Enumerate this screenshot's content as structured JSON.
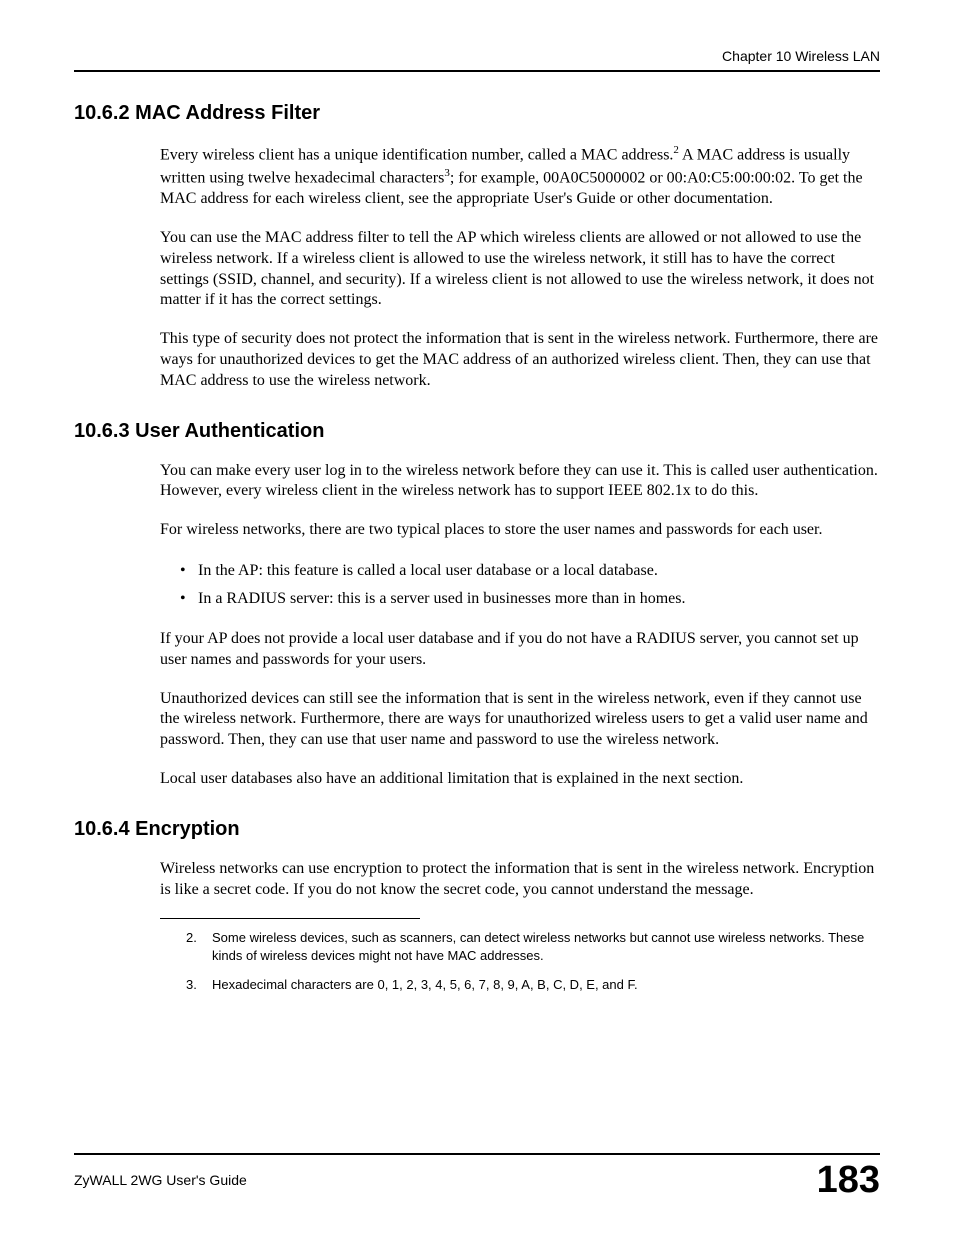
{
  "header": {
    "chapter": "Chapter 10 Wireless LAN"
  },
  "sections": {
    "s1": {
      "heading": "10.6.2  MAC Address Filter",
      "p1a": "Every wireless client has a unique identification number, called a MAC address.",
      "p1_sup1": "2",
      "p1b": " A MAC address is usually written using twelve hexadecimal characters",
      "p1_sup2": "3",
      "p1c": "; for example, 00A0C5000002 or 00:A0:C5:00:00:02. To get the MAC address for each wireless client, see the appropriate User's Guide or other documentation.",
      "p2": "You can use the MAC address filter to tell the AP which wireless clients are allowed or not allowed to use the wireless network. If a wireless client is allowed to use the wireless network, it still has to have the correct settings (SSID, channel, and security). If a wireless client is not allowed to use the wireless network, it does not matter if it has the correct settings.",
      "p3": "This type of security does not protect the information that is sent in the wireless network. Furthermore, there are ways for unauthorized devices to get the MAC address of an authorized wireless client. Then, they can use that MAC address to use the wireless network."
    },
    "s2": {
      "heading": "10.6.3  User Authentication",
      "p1": "You can make every user log in to the wireless network before they can use it. This is called user authentication. However, every wireless client in the wireless network has to support IEEE 802.1x to do this.",
      "p2": "For wireless networks, there are two typical places to store the user names and passwords for each user.",
      "bullets": {
        "b1": "In the AP: this feature is called a local user database or a local database.",
        "b2": "In a RADIUS server: this is a server used in businesses more than in homes."
      },
      "p3": "If your AP does not provide a local user database and if you do not have a RADIUS server, you cannot set up user names and passwords for your users.",
      "p4": "Unauthorized devices can still see the information that is sent in the wireless network, even if they cannot use the wireless network. Furthermore, there are ways for unauthorized wireless users to get a valid user name and password. Then, they can use that user name and password to use the wireless network.",
      "p5": "Local user databases also have an additional limitation that is explained in the next section."
    },
    "s3": {
      "heading": "10.6.4  Encryption",
      "p1": "Wireless networks can use encryption to protect the information that is sent in the wireless network. Encryption is like a secret code. If you do not know the secret code, you cannot understand the message."
    }
  },
  "footnotes": {
    "f2": {
      "num": "2.",
      "text": "Some wireless devices, such as scanners, can detect wireless networks but cannot use wireless networks. These kinds of wireless devices might not have MAC addresses."
    },
    "f3": {
      "num": "3.",
      "text": "Hexadecimal characters are 0, 1, 2, 3, 4, 5, 6, 7, 8, 9, A, B, C, D, E, and F."
    }
  },
  "footer": {
    "guide": "ZyWALL 2WG User's Guide",
    "page": "183"
  }
}
